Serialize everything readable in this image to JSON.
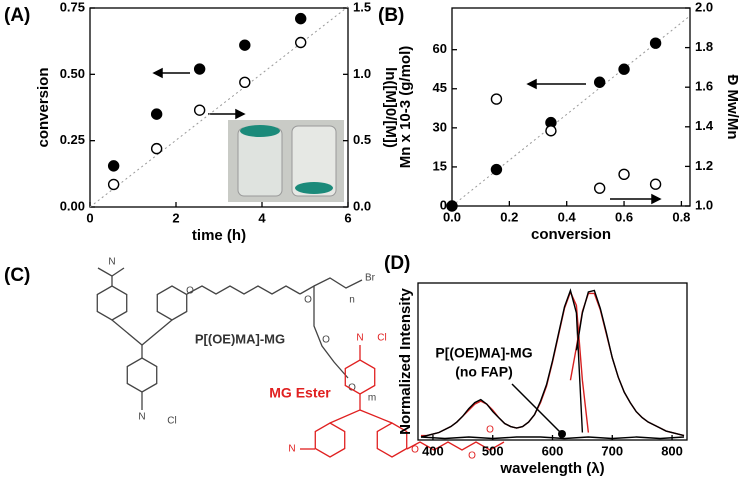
{
  "chart_data": [
    {
      "type": "scatter",
      "label": "(A)",
      "xlabel": "time (h)",
      "ylabel": "conversion",
      "y2label": "ln([M]0/[M])",
      "xlim": [
        0,
        6
      ],
      "xticks": [
        0,
        2,
        4,
        6
      ],
      "ylim": [
        0,
        0.75
      ],
      "yticks": [
        {
          "value": 0,
          "label": "0.00"
        },
        0.25,
        {
          "value": 0.5,
          "label": "0.50"
        },
        0.75
      ],
      "y2lim": [
        0,
        1.5
      ],
      "y2ticks": [
        {
          "value": 0,
          "label": "0.0"
        },
        0.5,
        {
          "value": 1,
          "label": "1.0"
        },
        1.5
      ],
      "series": [
        {
          "marker": "filled",
          "color": "#000000",
          "x": [
            0.55,
            1.55,
            2.55,
            3.6,
            4.9
          ],
          "values": [
            0.155,
            0.35,
            0.52,
            0.61,
            0.71
          ]
        },
        {
          "marker": "open",
          "color": "#000000",
          "axis": "y2",
          "x": [
            0.55,
            1.55,
            2.55,
            3.6,
            4.9
          ],
          "values": [
            0.17,
            0.44,
            0.73,
            0.94,
            1.24
          ]
        }
      ],
      "trend": {
        "axis": "y2",
        "x": [
          0,
          6
        ],
        "values": [
          0,
          1.51
        ]
      }
    },
    {
      "type": "scatter",
      "label": "(B)",
      "xlabel": "conversion",
      "ylabel": "Mn x 10-3 (g/mol)",
      "y2label": "Đ Mw/Mn",
      "xlim": [
        0,
        0.83
      ],
      "xticks": [
        {
          "value": 0,
          "label": "0.0"
        },
        0.2,
        0.4,
        0.6,
        0.8
      ],
      "ylim": [
        0,
        76
      ],
      "yticks": [
        0,
        15,
        30,
        45,
        60
      ],
      "y2lim": [
        1,
        2
      ],
      "y2ticks": [
        {
          "value": 1,
          "label": "1.0"
        },
        1.2,
        1.4,
        1.6,
        1.8,
        {
          "value": 2,
          "label": "2.0"
        }
      ],
      "series": [
        {
          "marker": "filled",
          "color": "#000000",
          "x": [
            0,
            0.155,
            0.345,
            0.515,
            0.6,
            0.71
          ],
          "values": [
            0,
            14,
            32,
            47.5,
            52.5,
            62.5
          ]
        },
        {
          "marker": "open",
          "color": "#000000",
          "axis": "y2",
          "x": [
            0.155,
            0.345,
            0.515,
            0.6,
            0.71
          ],
          "values": [
            1.54,
            1.38,
            1.09,
            1.16,
            1.11
          ]
        }
      ],
      "trend": {
        "x": [
          0,
          0.83
        ],
        "values": [
          0,
          73
        ]
      }
    },
    {
      "type": "line",
      "label": "(D)",
      "xlabel": "wavelength (λ)",
      "ylabel": "Normalized Intensity",
      "annotation": [
        "P[(OE)MA]-MG",
        "(no FAP)"
      ],
      "xlim": [
        375,
        825
      ],
      "xticks": [
        400,
        500,
        600,
        700,
        800
      ],
      "ylim": [
        0,
        1.05
      ],
      "series": [
        {
          "color": "#d62020",
          "x": [
            380,
            390,
            400,
            410,
            420,
            430,
            440,
            450,
            460,
            470,
            480,
            490,
            500,
            510,
            520,
            530,
            540,
            550,
            560,
            570,
            580,
            590,
            600,
            610,
            620,
            630,
            640,
            650,
            660
          ],
          "values": [
            0.03,
            0.03,
            0.04,
            0.05,
            0.07,
            0.09,
            0.12,
            0.16,
            0.2,
            0.24,
            0.26,
            0.24,
            0.2,
            0.15,
            0.11,
            0.09,
            0.08,
            0.09,
            0.12,
            0.17,
            0.25,
            0.36,
            0.52,
            0.7,
            0.88,
            0.99,
            0.9,
            0.4,
            0.05
          ]
        },
        {
          "color": "#000000",
          "x": [
            380,
            390,
            400,
            410,
            420,
            430,
            440,
            450,
            460,
            470,
            480,
            490,
            500,
            510,
            520,
            530,
            540,
            550,
            560,
            570,
            580,
            590,
            600,
            610,
            620,
            630,
            640,
            650
          ],
          "values": [
            0.02,
            0.03,
            0.04,
            0.05,
            0.07,
            0.09,
            0.12,
            0.16,
            0.21,
            0.25,
            0.27,
            0.24,
            0.19,
            0.15,
            0.11,
            0.09,
            0.08,
            0.09,
            0.12,
            0.17,
            0.26,
            0.37,
            0.53,
            0.71,
            0.89,
            1.0,
            0.85,
            0.05
          ]
        },
        {
          "color": "#d62020",
          "x": [
            630,
            640,
            650,
            660,
            670,
            680,
            690,
            700,
            710,
            720,
            730,
            740,
            750,
            760,
            770,
            780,
            790,
            800,
            810,
            820
          ],
          "values": [
            0.4,
            0.62,
            0.86,
            0.98,
            0.98,
            0.87,
            0.71,
            0.55,
            0.42,
            0.32,
            0.25,
            0.19,
            0.15,
            0.12,
            0.1,
            0.08,
            0.06,
            0.05,
            0.04,
            0.03
          ]
        },
        {
          "color": "#000000",
          "x": [
            640,
            650,
            660,
            670,
            680,
            690,
            700,
            710,
            720,
            730,
            740,
            750,
            760,
            770,
            780,
            790,
            800,
            810,
            820
          ],
          "values": [
            0.6,
            0.85,
            0.99,
            1.0,
            0.88,
            0.72,
            0.55,
            0.42,
            0.32,
            0.25,
            0.19,
            0.15,
            0.12,
            0.1,
            0.08,
            0.06,
            0.05,
            0.04,
            0.03
          ]
        },
        {
          "color": "#000000",
          "x": [
            380,
            420,
            460,
            500,
            540,
            580,
            620,
            660,
            700,
            740,
            780,
            820
          ],
          "values": [
            0.02,
            0.01,
            0.02,
            0.01,
            0.02,
            0.02,
            0.01,
            0.02,
            0.01,
            0.02,
            0.01,
            0.02
          ]
        }
      ]
    }
  ],
  "structure": {
    "label": "(C)",
    "polymer_name": "P[(OE)MA]-MG",
    "ester_name": "MG Ester",
    "atoms": [
      "N",
      "O",
      "Br",
      "n",
      "O",
      "O",
      "O",
      "m",
      "N",
      "Cl",
      "N",
      "Cl",
      "N",
      "O",
      "O",
      "O"
    ]
  }
}
